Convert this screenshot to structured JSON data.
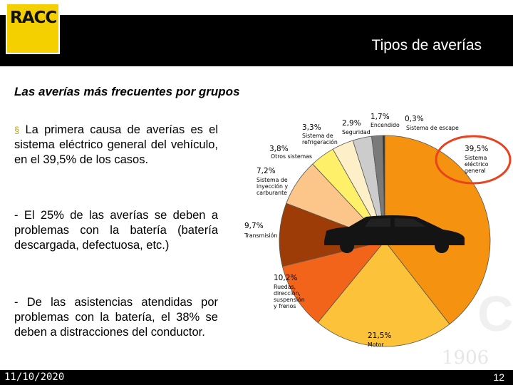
{
  "brand": {
    "logo_text": "RACC",
    "accent_color": "#f5d000"
  },
  "slide": {
    "title": "Tipos de averías",
    "subtitle": "Las averías más frecuentes por grupos",
    "date": "11/10/2020",
    "page_number": "12",
    "watermark_year": "1906"
  },
  "body": {
    "bullet_glyph": "§",
    "para1": "La primera causa de averías es el sistema eléctrico general del vehículo, en el 39,5% de los casos.",
    "para2": "- El 25% de las averías se deben a problemas con la batería (batería descargada, defectuosa, etc.)",
    "para3": "- De las asistencias atendidas por problemas con la batería, el 38% se deben a distracciones del conductor."
  },
  "chart_data": {
    "type": "pie",
    "highlighted": "Sistema eléctrico general",
    "slices": [
      {
        "name": "Sistema eléctrico general",
        "value": 39.5,
        "label": "39,5%",
        "color": "#f5920f"
      },
      {
        "name": "Motor",
        "value": 21.5,
        "label": "21,5%",
        "color": "#fcc23a"
      },
      {
        "name": "Ruedas, dirección, suspensión y frenos",
        "value": 10.2,
        "label": "10,2%",
        "color": "#f26419"
      },
      {
        "name": "Transmisión",
        "value": 9.7,
        "label": "9,7%",
        "color": "#9e3c08"
      },
      {
        "name": "Sistema de inyección y carburante",
        "value": 7.2,
        "label": "7,2%",
        "color": "#fcc68a"
      },
      {
        "name": "Otros sistemas",
        "value": 3.8,
        "label": "3,8%",
        "color": "#fff06a"
      },
      {
        "name": "Sistema de refrigeración",
        "value": 3.3,
        "label": "3,3%",
        "color": "#fdf0c8"
      },
      {
        "name": "Seguridad",
        "value": 2.9,
        "label": "2,9%",
        "color": "#cccccc"
      },
      {
        "name": "Encendido",
        "value": 1.7,
        "label": "1,7%",
        "color": "#7a7a7a"
      },
      {
        "name": "Sistema de escape",
        "value": 0.3,
        "label": "0,3%",
        "color": "#333333"
      }
    ]
  }
}
